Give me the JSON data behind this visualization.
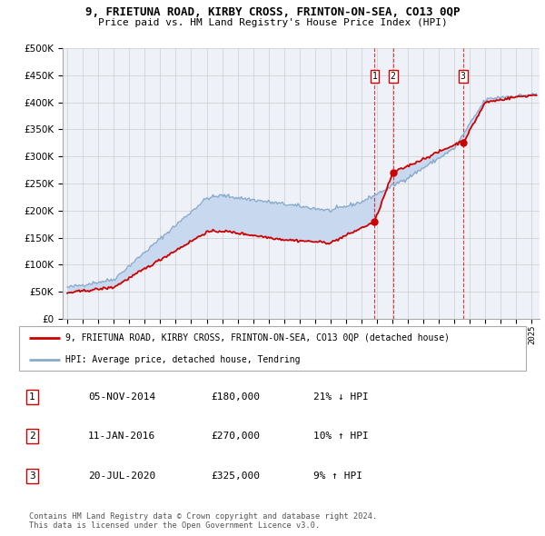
{
  "title": "9, FRIETUNA ROAD, KIRBY CROSS, FRINTON-ON-SEA, CO13 0QP",
  "subtitle": "Price paid vs. HM Land Registry's House Price Index (HPI)",
  "legend_label_red": "9, FRIETUNA ROAD, KIRBY CROSS, FRINTON-ON-SEA, CO13 0QP (detached house)",
  "legend_label_blue": "HPI: Average price, detached house, Tendring",
  "footer_line1": "Contains HM Land Registry data © Crown copyright and database right 2024.",
  "footer_line2": "This data is licensed under the Open Government Licence v3.0.",
  "transactions": [
    {
      "label": "1",
      "date": "05-NOV-2014",
      "price": "£180,000",
      "hpi_note": "21% ↓ HPI"
    },
    {
      "label": "2",
      "date": "11-JAN-2016",
      "price": "£270,000",
      "hpi_note": "10% ↑ HPI"
    },
    {
      "label": "3",
      "date": "20-JUL-2020",
      "price": "£325,000",
      "hpi_note": "9% ↑ HPI"
    }
  ],
  "transaction_dates_num": [
    2014.846,
    2016.033,
    2020.554
  ],
  "transaction_prices": [
    180000,
    270000,
    325000
  ],
  "ylim": [
    0,
    500000
  ],
  "yticks": [
    0,
    50000,
    100000,
    150000,
    200000,
    250000,
    300000,
    350000,
    400000,
    450000,
    500000
  ],
  "xlim_start": 1994.7,
  "xlim_end": 2025.5,
  "color_red": "#cc0000",
  "color_blue_fill": "#c8d8ee",
  "color_blue_line": "#88aacc",
  "grid_color": "#cccccc",
  "bg_color": "#eef2f8",
  "vline_color": "#cc0000"
}
